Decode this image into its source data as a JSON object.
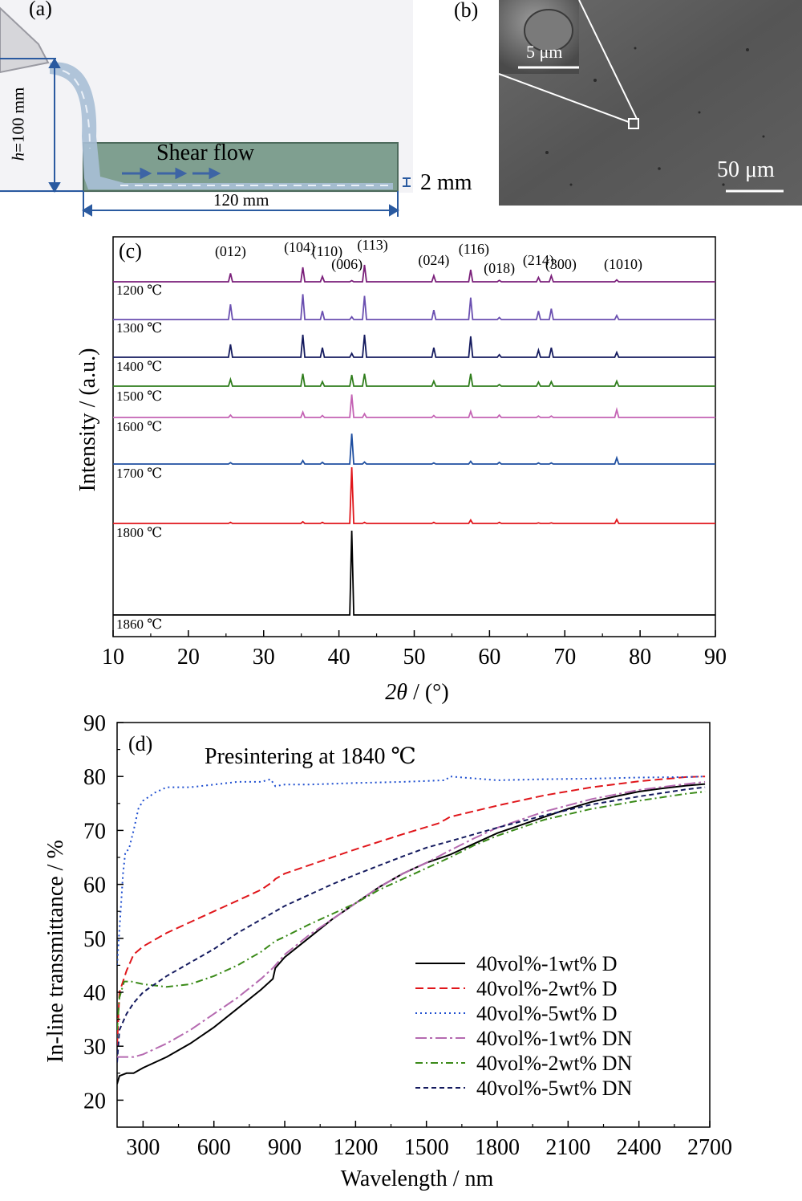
{
  "panel_a": {
    "label": "(a)",
    "height_label": "h=100 mm",
    "height_label_italic": "h",
    "height_label_rest": "=100 mm",
    "flow_label": "Shear flow",
    "length_label": "120 mm",
    "thickness_label": "2 mm",
    "colors": {
      "mold": "#7f9f90",
      "slurry": "#a9bfd6",
      "arrow": "#3d64a5"
    }
  },
  "panel_b": {
    "label": "(b)",
    "inset_scale": "5 μm",
    "main_scale": "50 μm"
  },
  "chart_data": [
    {
      "panel": "(c)",
      "type": "line",
      "xlabel_italic": "2θ",
      "xlabel_rest": " / (°)",
      "ylabel": "Intensity / (a.u.)",
      "xlim": [
        10,
        90
      ],
      "xticks": [
        10,
        20,
        30,
        40,
        50,
        60,
        70,
        80,
        90
      ],
      "peak_labels": [
        {
          "label": "(012)",
          "x": 25.6
        },
        {
          "label": "(104)",
          "x": 35.2
        },
        {
          "label": "(110)",
          "x": 37.8
        },
        {
          "label": "(006)",
          "x": 41.7
        },
        {
          "label": "(113)",
          "x": 43.4
        },
        {
          "label": "(024)",
          "x": 52.6
        },
        {
          "label": "(116)",
          "x": 57.5
        },
        {
          "label": "(018)",
          "x": 61.3
        },
        {
          "label": "(214)",
          "x": 66.5
        },
        {
          "label": "(300)",
          "x": 68.2
        },
        {
          "label": "(1010)",
          "x": 76.9
        }
      ],
      "series": [
        {
          "name": "1200 ℃",
          "color": "#7a1f7a",
          "peaks": [
            [
              25.6,
              0.35
            ],
            [
              35.2,
              0.6
            ],
            [
              37.8,
              0.22
            ],
            [
              41.7,
              0.05
            ],
            [
              43.4,
              0.7
            ],
            [
              52.6,
              0.25
            ],
            [
              57.5,
              0.5
            ],
            [
              61.3,
              0.06
            ],
            [
              66.5,
              0.18
            ],
            [
              68.2,
              0.25
            ],
            [
              76.9,
              0.08
            ]
          ]
        },
        {
          "name": "1300 ℃",
          "color": "#6a4fb0",
          "peaks": [
            [
              25.6,
              0.45
            ],
            [
              35.2,
              0.75
            ],
            [
              37.8,
              0.25
            ],
            [
              41.7,
              0.08
            ],
            [
              43.4,
              0.7
            ],
            [
              52.6,
              0.28
            ],
            [
              57.5,
              0.65
            ],
            [
              61.3,
              0.06
            ],
            [
              66.5,
              0.25
            ],
            [
              68.2,
              0.32
            ],
            [
              76.9,
              0.12
            ]
          ]
        },
        {
          "name": "1400 ℃",
          "color": "#141a5e",
          "peaks": [
            [
              25.6,
              0.4
            ],
            [
              35.2,
              0.7
            ],
            [
              37.8,
              0.3
            ],
            [
              41.7,
              0.12
            ],
            [
              43.4,
              0.7
            ],
            [
              52.6,
              0.3
            ],
            [
              57.5,
              0.65
            ],
            [
              61.3,
              0.08
            ],
            [
              66.5,
              0.22
            ],
            [
              68.2,
              0.3
            ],
            [
              76.9,
              0.15
            ]
          ]
        },
        {
          "name": "1500 ℃",
          "color": "#2f7d1c",
          "peaks": [
            [
              25.6,
              0.3
            ],
            [
              35.2,
              0.55
            ],
            [
              37.8,
              0.2
            ],
            [
              41.7,
              0.5
            ],
            [
              43.4,
              0.55
            ],
            [
              52.6,
              0.22
            ],
            [
              57.5,
              0.55
            ],
            [
              61.3,
              0.07
            ],
            [
              66.5,
              0.18
            ],
            [
              68.2,
              0.2
            ],
            [
              76.9,
              0.22
            ]
          ]
        },
        {
          "name": "1600 ℃",
          "color": "#c463b4",
          "peaks": [
            [
              25.6,
              0.1
            ],
            [
              35.2,
              0.22
            ],
            [
              37.8,
              0.08
            ],
            [
              41.7,
              0.95
            ],
            [
              43.4,
              0.15
            ],
            [
              52.6,
              0.08
            ],
            [
              57.5,
              0.25
            ],
            [
              61.3,
              0.1
            ],
            [
              66.5,
              0.06
            ],
            [
              68.2,
              0.06
            ],
            [
              76.9,
              0.32
            ]
          ]
        },
        {
          "name": "1700 ℃",
          "color": "#1f4fa0",
          "peaks": [
            [
              25.6,
              0.04
            ],
            [
              35.2,
              0.1
            ],
            [
              37.8,
              0.05
            ],
            [
              41.7,
              0.9
            ],
            [
              43.4,
              0.06
            ],
            [
              52.6,
              0.03
            ],
            [
              57.5,
              0.08
            ],
            [
              61.3,
              0.05
            ],
            [
              66.5,
              0.03
            ],
            [
              68.2,
              0.03
            ],
            [
              76.9,
              0.18
            ]
          ]
        },
        {
          "name": "1800 ℃",
          "color": "#e0161b",
          "peaks": [
            [
              25.6,
              0.02
            ],
            [
              35.2,
              0.03
            ],
            [
              37.8,
              0.02
            ],
            [
              41.7,
              1.0
            ],
            [
              43.4,
              0.02
            ],
            [
              52.6,
              0.02
            ],
            [
              57.5,
              0.06
            ],
            [
              61.3,
              0.02
            ],
            [
              66.5,
              0.01
            ],
            [
              68.2,
              0.01
            ],
            [
              76.9,
              0.07
            ]
          ]
        },
        {
          "name": "1860 ℃",
          "color": "#000000",
          "peaks": [
            [
              41.7,
              1.0
            ]
          ]
        }
      ]
    },
    {
      "panel": "(d)",
      "type": "line",
      "annotation": "Presintering at 1840 ℃",
      "xlabel": "Wavelength / nm",
      "ylabel": "In-line transmittance / %",
      "xlim": [
        190,
        2700
      ],
      "ylim": [
        15,
        90
      ],
      "xticks": [
        300,
        600,
        900,
        1200,
        1500,
        1800,
        2100,
        2400,
        2700
      ],
      "yticks": [
        20,
        30,
        40,
        50,
        60,
        70,
        80,
        90
      ],
      "legend_position": "bottom-right",
      "series": [
        {
          "name": "40vol%-1wt% D",
          "color": "#000000",
          "dash": "",
          "x": [
            190,
            200,
            230,
            260,
            300,
            400,
            500,
            600,
            700,
            800,
            850,
            860,
            900,
            1000,
            1100,
            1200,
            1300,
            1400,
            1500,
            1580,
            1600,
            1700,
            1800,
            1900,
            2000,
            2100,
            2200,
            2300,
            2400,
            2500,
            2600,
            2680
          ],
          "y": [
            23,
            24.5,
            25,
            25,
            26,
            28,
            30.5,
            33.5,
            37,
            40.5,
            42.5,
            44.5,
            46.5,
            50,
            53.5,
            56.5,
            59.5,
            62,
            64,
            65.2,
            65.5,
            67.5,
            69.5,
            71,
            72.5,
            74,
            75.3,
            76.3,
            77.2,
            77.8,
            78.3,
            78.6
          ]
        },
        {
          "name": "40vol%-2wt% D",
          "color": "#e0161b",
          "dash": "10,5",
          "x": [
            190,
            200,
            230,
            260,
            300,
            400,
            500,
            600,
            700,
            800,
            850,
            860,
            900,
            1000,
            1200,
            1400,
            1550,
            1580,
            1600,
            1800,
            2000,
            2200,
            2400,
            2600,
            2680
          ],
          "y": [
            30,
            40,
            44,
            47,
            48.5,
            51,
            53,
            55,
            57,
            59,
            60.5,
            61,
            62,
            63.5,
            66.5,
            69.3,
            71.3,
            72,
            72.5,
            74.6,
            76.5,
            78,
            79.1,
            79.9,
            80
          ]
        },
        {
          "name": "40vol%-5wt% D",
          "color": "#1f4fd0",
          "dash": "2,4",
          "x": [
            190,
            205,
            215,
            225,
            240,
            260,
            280,
            300,
            350,
            400,
            500,
            600,
            700,
            800,
            840,
            860,
            900,
            1000,
            1200,
            1400,
            1580,
            1600,
            1800,
            2000,
            2200,
            2400,
            2600,
            2680
          ],
          "y": [
            45,
            55,
            62,
            66,
            66.5,
            70,
            74,
            75.5,
            77,
            78,
            78,
            78.5,
            79,
            79,
            79.5,
            78.2,
            78.5,
            78.5,
            78.8,
            79,
            79.3,
            80,
            79.3,
            79.5,
            79.6,
            79.8,
            79.9,
            80
          ]
        },
        {
          "name": "40vol%-1wt% DN",
          "color": "#b56ab0",
          "dash": "14,4,3,4",
          "x": [
            190,
            200,
            230,
            260,
            300,
            400,
            500,
            600,
            700,
            800,
            850,
            900,
            1000,
            1100,
            1200,
            1300,
            1400,
            1500,
            1600,
            1700,
            1800,
            1900,
            2000,
            2200,
            2400,
            2600,
            2680
          ],
          "y": [
            28,
            28,
            28,
            28,
            28.5,
            30.5,
            33,
            36,
            39,
            42.5,
            44.5,
            47,
            50.5,
            53.5,
            56.5,
            59.5,
            62,
            64,
            66.3,
            68.5,
            70.5,
            72,
            73.5,
            75.8,
            77.5,
            78.6,
            79
          ]
        },
        {
          "name": "40vol%-2wt% DN",
          "color": "#3a8a18",
          "dash": "9,4,2,4",
          "x": [
            190,
            200,
            220,
            250,
            300,
            400,
            500,
            600,
            700,
            800,
            860,
            900,
            1000,
            1100,
            1200,
            1300,
            1400,
            1500,
            1600,
            1700,
            1800,
            1900,
            2000,
            2200,
            2400,
            2600,
            2680
          ],
          "y": [
            33,
            39,
            42,
            42,
            41.5,
            41,
            41.5,
            43,
            45,
            47.5,
            49.5,
            50.3,
            52.5,
            54.5,
            56.5,
            59,
            61,
            63,
            65,
            67.2,
            69,
            70.5,
            72,
            74,
            75.5,
            76.8,
            77.2
          ]
        },
        {
          "name": "40vol%-5wt% DN",
          "color": "#141a5e",
          "dash": "6,4",
          "x": [
            190,
            200,
            230,
            260,
            300,
            400,
            500,
            600,
            700,
            800,
            900,
            1000,
            1100,
            1200,
            1300,
            1400,
            1500,
            1600,
            1800,
            2000,
            2200,
            2400,
            2600,
            2680
          ],
          "y": [
            27,
            33,
            36,
            38,
            40,
            43,
            45.5,
            48,
            51,
            53.5,
            56,
            58,
            60,
            61.8,
            63.5,
            65.2,
            66.8,
            68,
            70.5,
            72.8,
            74.8,
            76.3,
            77.6,
            78
          ]
        }
      ]
    }
  ]
}
